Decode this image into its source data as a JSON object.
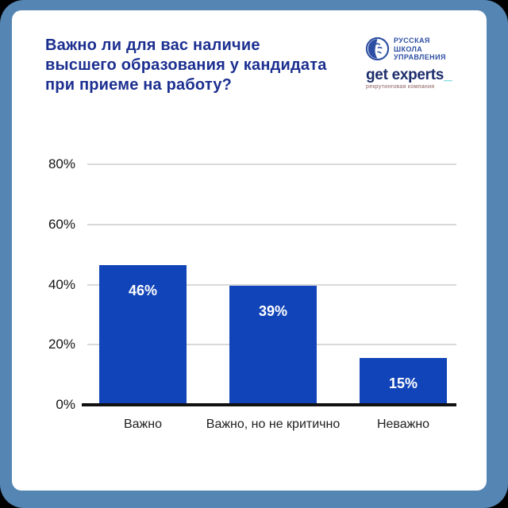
{
  "header": {
    "title": "Важно ли для вас наличие высшего образования у кандидата при приеме на работу?"
  },
  "logos": {
    "rsu": {
      "icon": "rsu-globe-face-icon",
      "line1": "РУССКАЯ",
      "line2": "ШКОЛА",
      "line3": "УПРАВЛЕНИЯ",
      "color": "#2d4fa3"
    },
    "get_experts": {
      "name": "get experts",
      "cursor": "_",
      "tagline": "рекрутинговая компания",
      "name_color": "#1d2d6b",
      "cursor_color": "#35c4cd",
      "tagline_color": "#8f6060"
    }
  },
  "chart_data": {
    "type": "bar",
    "title": "Важно ли для вас наличие высшего образования у кандидата при приеме на работу?",
    "categories": [
      "Важно",
      "Важно, но не критично",
      "Неважно"
    ],
    "values": [
      46,
      39,
      15
    ],
    "value_labels": [
      "46%",
      "39%",
      "15%"
    ],
    "xlabel": "",
    "ylabel": "",
    "ylim": [
      0,
      80
    ],
    "y_ticks": [
      {
        "label": "0%",
        "value": 0
      },
      {
        "label": "20%",
        "value": 20
      },
      {
        "label": "40%",
        "value": 40
      },
      {
        "label": "60%",
        "value": 60
      },
      {
        "label": "80%",
        "value": 80
      }
    ],
    "grid": true,
    "legend": "none",
    "bar_color": "#1144b8",
    "value_label_color": "#ffffff"
  },
  "colors": {
    "background": "#000000",
    "frame_border": "#5585b2",
    "card": "#ffffff",
    "title": "#1c2f90",
    "gridline": "#d9d9d9",
    "axis": "#111111"
  }
}
